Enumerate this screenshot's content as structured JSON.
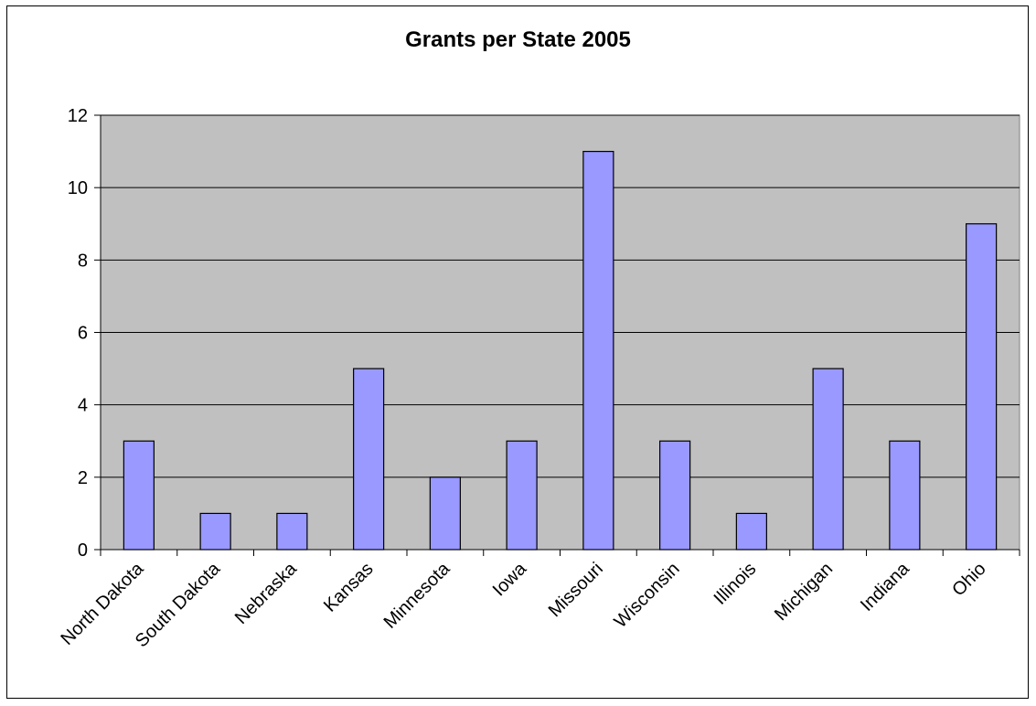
{
  "chart_data": {
    "type": "bar",
    "title": "Grants per State 2005",
    "xlabel": "",
    "ylabel": "",
    "categories": [
      "North Dakota",
      "South Dakota",
      "Nebraska",
      "Kansas",
      "Minnesota",
      "Iowa",
      "Missouri",
      "Wisconsin",
      "Illinois",
      "Michigan",
      "Indiana",
      "Ohio"
    ],
    "values": [
      3,
      1,
      1,
      5,
      2,
      3,
      11,
      3,
      1,
      5,
      3,
      9
    ],
    "ylim": [
      0,
      12
    ],
    "yticks": [
      "0",
      "2",
      "4",
      "6",
      "8",
      "10",
      "12"
    ],
    "grid": true,
    "legend": "none",
    "colors": {
      "bar_fill": "#9999ff",
      "bar_stroke": "#000000",
      "plot_background": "#c0c0c0",
      "gridline": "#000000"
    }
  }
}
